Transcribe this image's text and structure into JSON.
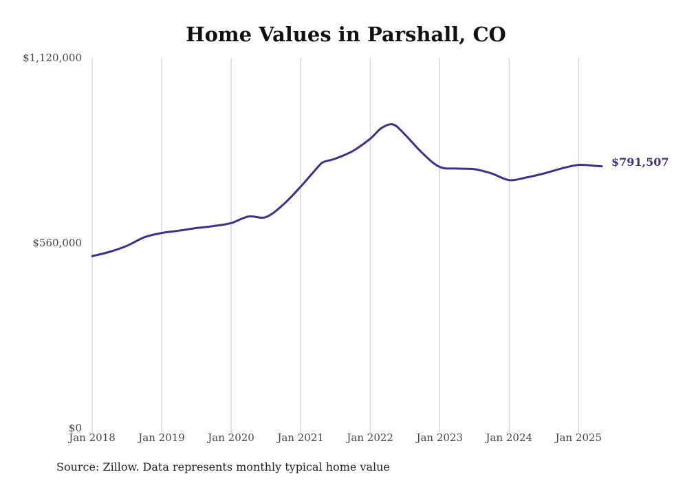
{
  "chart_data": {
    "type": "line",
    "title": "Home Values in Parshall, CO",
    "source": "Source: Zillow. Data represents monthly typical home value",
    "xlabel": "",
    "ylabel": "",
    "x_ticks": [
      "Jan 2018",
      "Jan 2019",
      "Jan 2020",
      "Jan 2021",
      "Jan 2022",
      "Jan 2023",
      "Jan 2024",
      "Jan 2025"
    ],
    "y_ticks": [
      {
        "value": 0,
        "label": "$0"
      },
      {
        "value": 560000,
        "label": "$560,000"
      },
      {
        "value": 1120000,
        "label": "$1,120,000"
      }
    ],
    "ylim": [
      0,
      1120000
    ],
    "xlim": [
      "2018-01",
      "2025-05"
    ],
    "grid": {
      "vertical": true,
      "horizontal": false
    },
    "line_color": "#3a3288",
    "end_label": "$791,507",
    "series": [
      {
        "x": [
          "2018-01",
          "2018-04",
          "2018-07",
          "2018-10",
          "2019-01",
          "2019-04",
          "2019-07",
          "2019-10",
          "2020-01",
          "2020-04",
          "2020-07",
          "2020-10",
          "2021-01",
          "2021-04",
          "2021-05",
          "2021-07",
          "2021-10",
          "2022-01",
          "2022-03",
          "2022-05",
          "2022-07",
          "2022-10",
          "2023-01",
          "2023-04",
          "2023-07",
          "2023-10",
          "2024-01",
          "2024-04",
          "2024-07",
          "2024-10",
          "2025-01",
          "2025-04",
          "2025-05"
        ],
        "values": [
          520000,
          533000,
          551000,
          577000,
          590000,
          597000,
          605000,
          611000,
          620000,
          640000,
          638000,
          676000,
          730000,
          790000,
          805000,
          815000,
          838000,
          875000,
          908000,
          918000,
          888000,
          832000,
          790000,
          785000,
          783000,
          770000,
          750000,
          758000,
          770000,
          785000,
          796000,
          793000,
          791507
        ]
      }
    ]
  }
}
